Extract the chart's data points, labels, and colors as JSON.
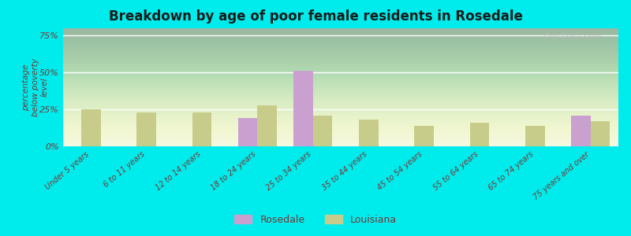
{
  "title": "Breakdown by age of poor female residents in Rosedale",
  "categories": [
    "Under 5 years",
    "6 to 11 years",
    "12 to 14 years",
    "18 to 24 years",
    "25 to 34 years",
    "35 to 44 years",
    "45 to 54 years",
    "55 to 64 years",
    "65 to 74 years",
    "75 years and over"
  ],
  "rosedale": [
    null,
    null,
    null,
    19,
    51,
    null,
    null,
    null,
    null,
    21
  ],
  "louisiana": [
    25,
    23,
    23,
    28,
    21,
    18,
    14,
    16,
    14,
    17
  ],
  "rosedale_color": "#c9a0d0",
  "louisiana_color": "#c8cc8a",
  "bg_color": "#00ecec",
  "title_color": "#1a1a1a",
  "axis_label_color": "#7a3535",
  "tick_label_color": "#7a3535",
  "ylabel": "percentage\nbelow poverty\nlevel",
  "yticks": [
    0,
    25,
    50,
    75
  ],
  "ytick_labels": [
    "0%",
    "25%",
    "50%",
    "75%"
  ],
  "ylim": [
    0,
    80
  ],
  "bar_width": 0.35,
  "watermark": "City-Data.com"
}
